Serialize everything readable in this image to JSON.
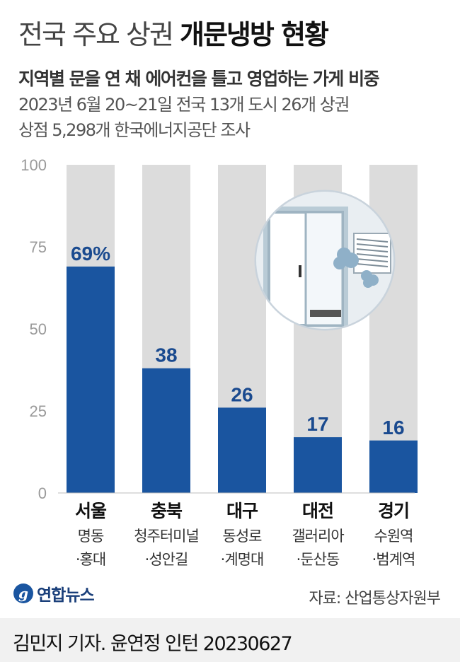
{
  "title": {
    "light": "전국 주요 상권",
    "bold": "개문냉방 현황"
  },
  "subtitle": "지역별 문을 연 채 에어컨을 틀고 영업하는 가게 비중",
  "notes": [
    "2023년 6월 20~21일 전국 13개 도시 26개 상권",
    "상점 5,298개 한국에너지공단 조사"
  ],
  "source": "자료: 산업통상자원부",
  "logo": {
    "text": "연합뉴스",
    "mark": "g"
  },
  "credit": "김민지 기자. 윤연정 인턴  20230627",
  "colors": {
    "bar": "#1a55a0",
    "track": "#dcdcdc",
    "label": "#1a4a8f"
  },
  "chart_data": {
    "type": "bar",
    "categories": [
      "서울",
      "충북",
      "대구",
      "대전",
      "경기"
    ],
    "sublabels": [
      [
        "명동",
        "·홍대"
      ],
      [
        "청주터미널",
        "·성안길"
      ],
      [
        "동성로",
        "·계명대"
      ],
      [
        "갤러리아",
        "·둔산동"
      ],
      [
        "수원역",
        "·범계역"
      ]
    ],
    "values": [
      69,
      38,
      26,
      17,
      16
    ],
    "value_labels": [
      "69%",
      "38",
      "26",
      "17",
      "16"
    ],
    "yticks": [
      0,
      25,
      50,
      75,
      100
    ],
    "ylim": [
      0,
      100
    ],
    "icon": "open-door-air-conditioner-illustration"
  }
}
